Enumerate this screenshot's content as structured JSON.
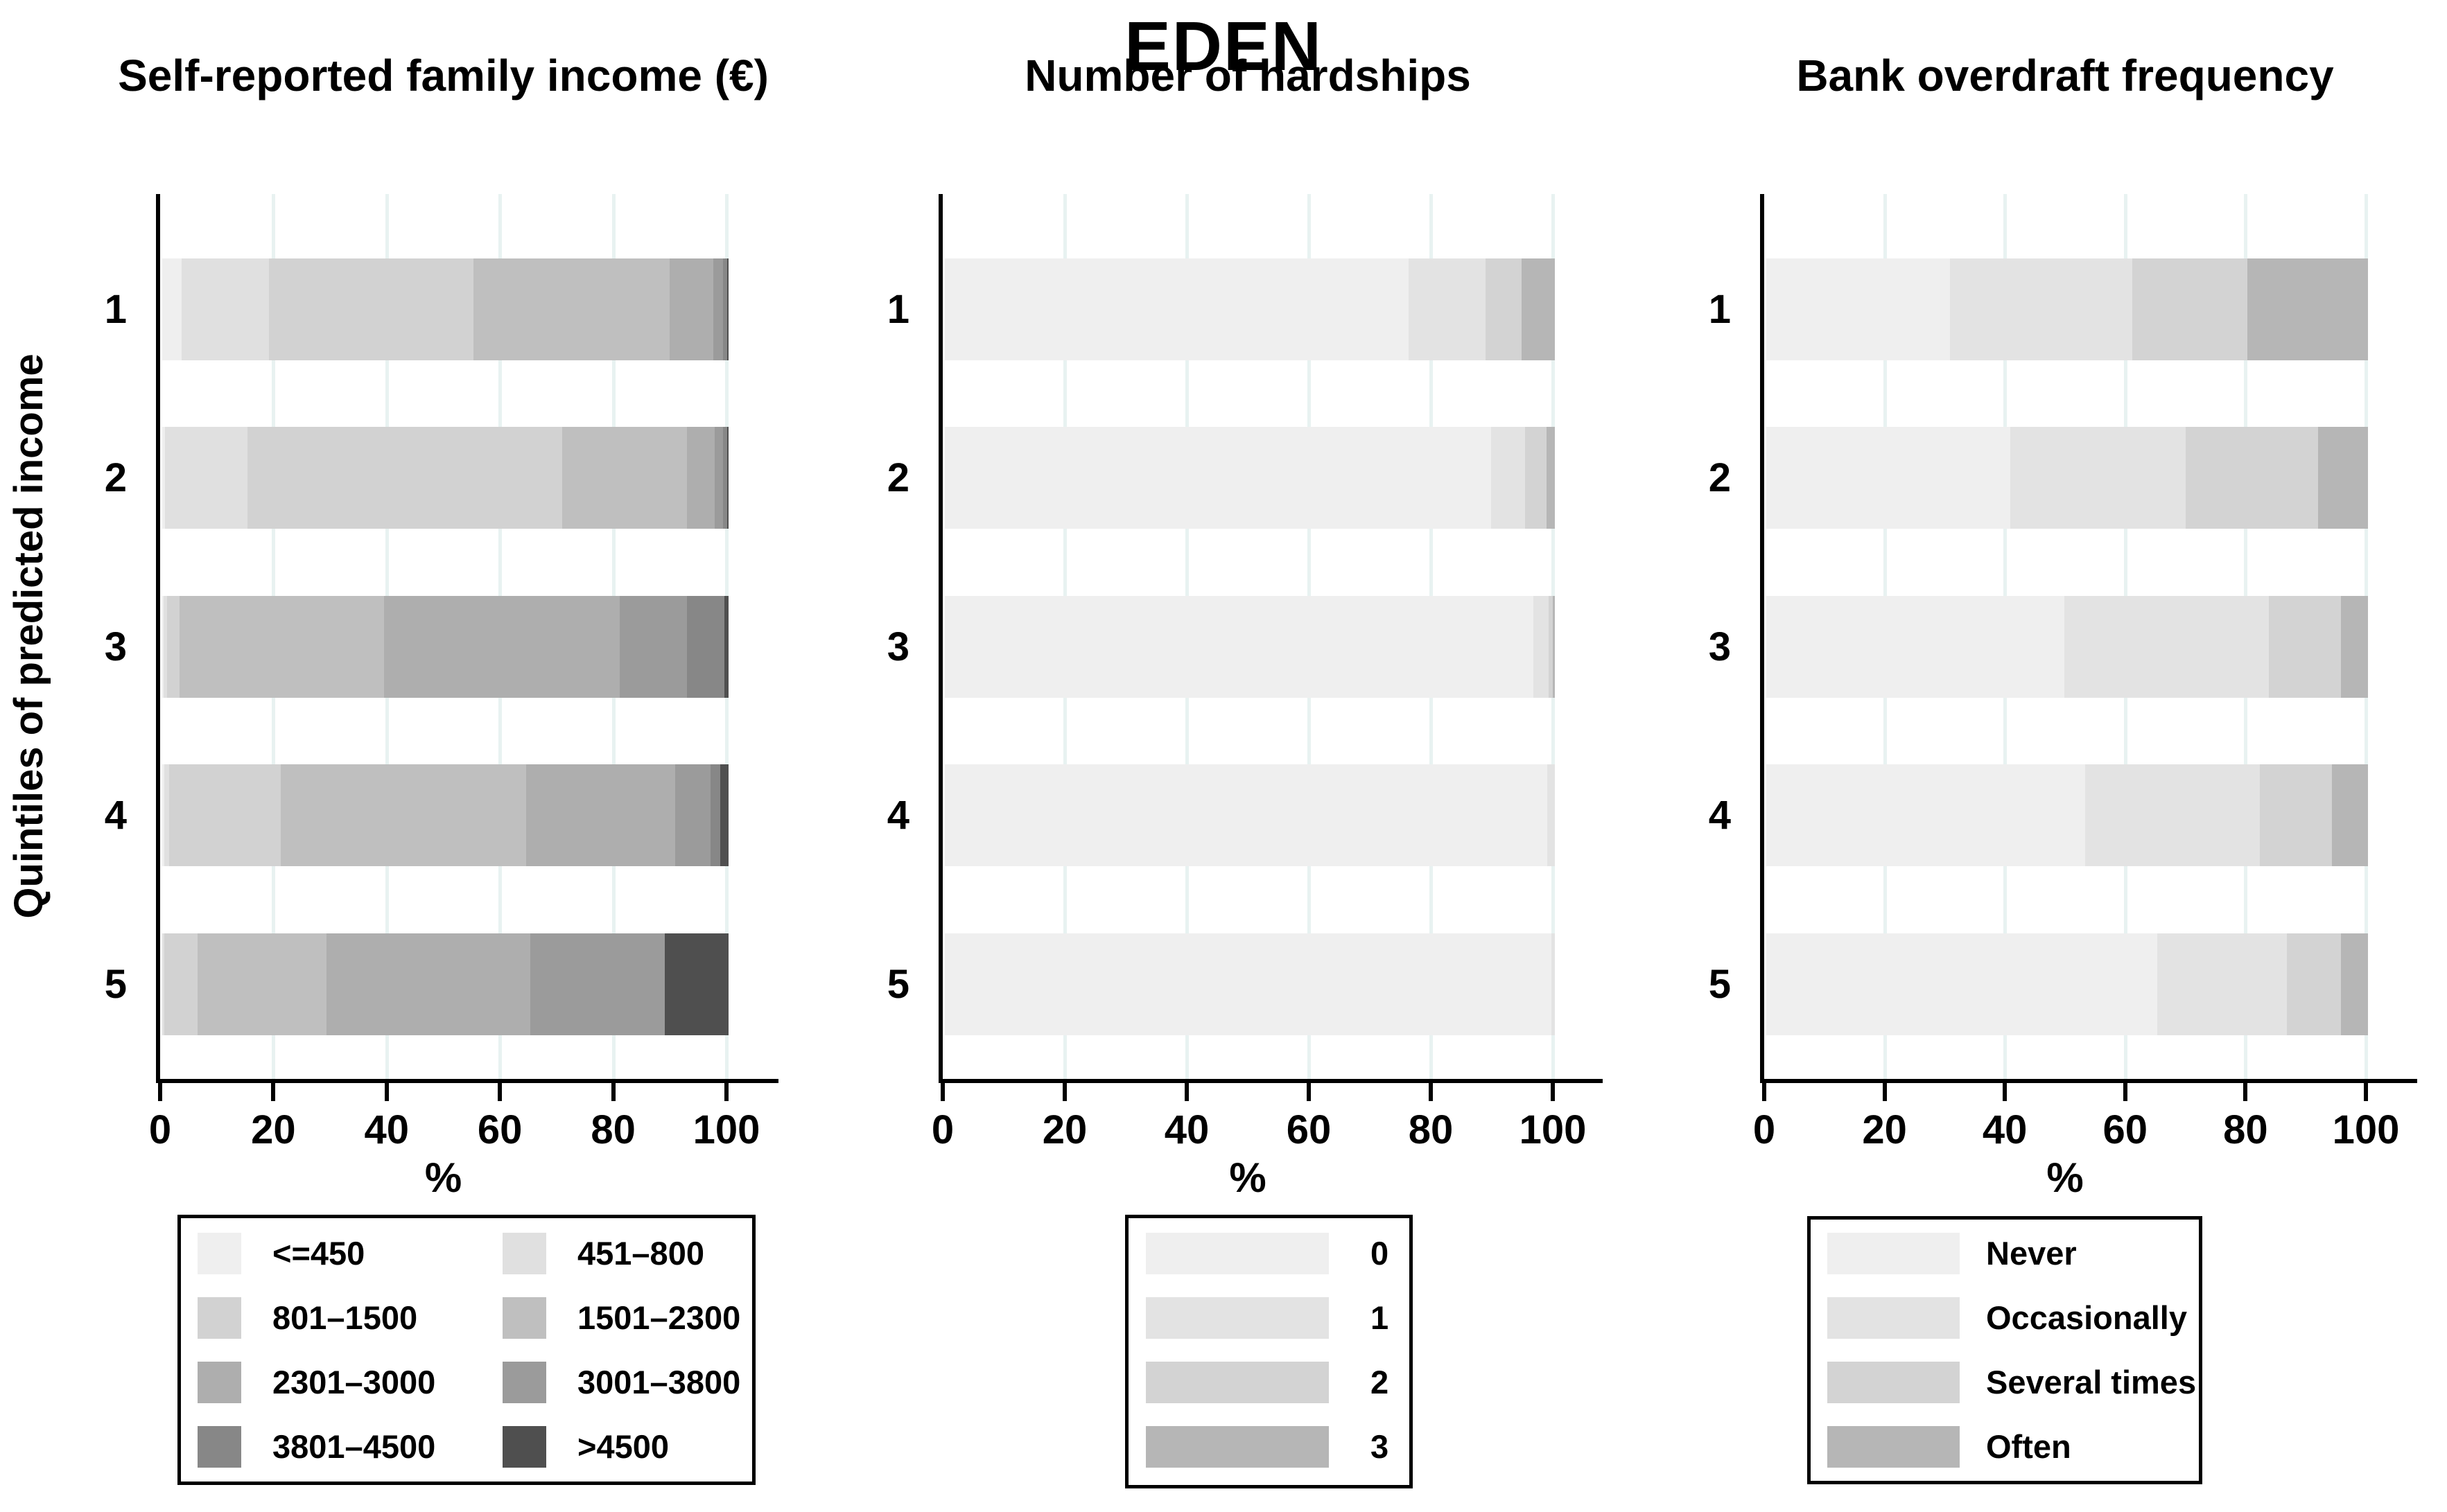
{
  "title": "EDEN",
  "ylabel": "Quintiles of predicted income",
  "xlabel": "%",
  "x_ticks": [
    "0",
    "20",
    "40",
    "60",
    "80",
    "100"
  ],
  "quintiles": [
    "1",
    "2",
    "3",
    "4",
    "5"
  ],
  "colors": {
    "palette8": [
      "#efefef",
      "#e0e0e0",
      "#d2d2d2",
      "#bfbfbf",
      "#aeaeae",
      "#9b9b9b",
      "#878787",
      "#4f4f4f"
    ],
    "palette4": [
      "#efefef",
      "#e3e3e3",
      "#d3d3d3",
      "#b6b6b6"
    ],
    "gridline": "#e8f2f1",
    "axis": "#000000"
  },
  "chart_data": [
    {
      "type": "bar",
      "orientation": "horizontal-stacked",
      "title": "Self-reported family income (€)",
      "xlabel": "%",
      "xlim": [
        0,
        100
      ],
      "grid": true,
      "rows": [
        "1",
        "2",
        "3",
        "4",
        "5"
      ],
      "categories": [
        "<=450",
        "451–800",
        "801–1500",
        "1501–2300",
        "2301–3000",
        "3001–3800",
        "3801–4500",
        ">4500"
      ],
      "legend_position": "bottom",
      "legend_columns": 2,
      "values": [
        [
          3.4,
          15.4,
          36.1,
          34.7,
          7.7,
          1.7,
          0.7,
          0.3
        ],
        [
          0.5,
          14.6,
          55.5,
          22.1,
          4.9,
          1.4,
          0.7,
          0.3
        ],
        [
          0.3,
          0.6,
          2.2,
          36.1,
          41.6,
          11.9,
          6.6,
          0.7
        ],
        [
          0.4,
          0.8,
          19.7,
          43.4,
          26.3,
          6.2,
          1.7,
          1.5
        ],
        [
          0.0,
          0.4,
          5.8,
          22.8,
          36.0,
          23.7,
          0.0,
          11.3
        ]
      ]
    },
    {
      "type": "bar",
      "orientation": "horizontal-stacked",
      "title": "Number of hardships",
      "xlabel": "%",
      "xlim": [
        0,
        100
      ],
      "grid": true,
      "rows": [
        "1",
        "2",
        "3",
        "4",
        "5"
      ],
      "categories": [
        "0",
        "1",
        "2",
        "3"
      ],
      "legend_position": "bottom",
      "legend_columns": 1,
      "values": [
        [
          76.0,
          12.6,
          6.0,
          5.4
        ],
        [
          89.5,
          5.6,
          3.5,
          1.4
        ],
        [
          96.5,
          2.5,
          0.7,
          0.3
        ],
        [
          98.8,
          1.2,
          0.0,
          0.0
        ],
        [
          99.4,
          0.6,
          0.0,
          0.0
        ]
      ]
    },
    {
      "type": "bar",
      "orientation": "horizontal-stacked",
      "title": "Bank overdraft frequency",
      "xlabel": "%",
      "xlim": [
        0,
        100
      ],
      "grid": true,
      "rows": [
        "1",
        "2",
        "3",
        "4",
        "5"
      ],
      "categories": [
        "Never",
        "Occasionally",
        "Several times",
        "Often"
      ],
      "legend_position": "bottom",
      "legend_columns": 1,
      "values": [
        [
          30.5,
          30.3,
          19.2,
          20.0
        ],
        [
          40.5,
          29.2,
          22.0,
          8.3
        ],
        [
          49.5,
          34.0,
          12.0,
          4.5
        ],
        [
          53.0,
          29.0,
          12.0,
          6.0
        ],
        [
          65.0,
          21.5,
          9.0,
          4.5
        ]
      ]
    }
  ]
}
